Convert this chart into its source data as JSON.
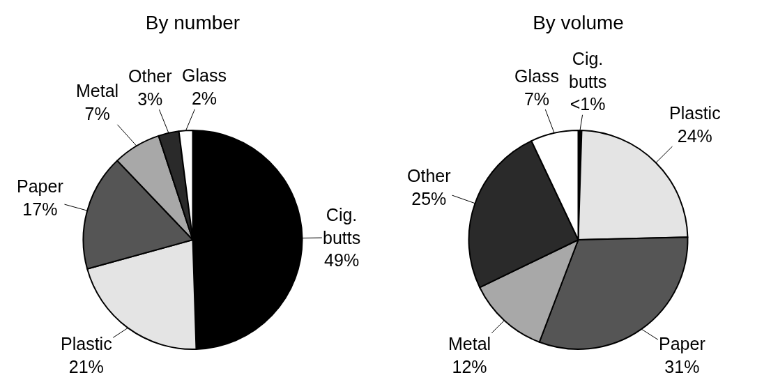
{
  "chart_data": [
    {
      "type": "pie",
      "title": "By number",
      "categories": [
        "Cig. butts",
        "Plastic",
        "Paper",
        "Metal",
        "Other",
        "Glass"
      ],
      "values": [
        49,
        21,
        17,
        7,
        3,
        2
      ],
      "value_labels": [
        "49%",
        "21%",
        "17%",
        "7%",
        "3%",
        "2%"
      ],
      "colors": [
        "#000000",
        "#e4e4e4",
        "#555555",
        "#a8a8a8",
        "#2a2a2a",
        "#ffffff"
      ]
    },
    {
      "type": "pie",
      "title": "By volume",
      "categories": [
        "Cig. butts",
        "Plastic",
        "Paper",
        "Metal",
        "Other",
        "Glass"
      ],
      "values": [
        0.5,
        24,
        31,
        12,
        25,
        7
      ],
      "value_labels": [
        "<1%",
        "24%",
        "31%",
        "12%",
        "25%",
        "7%"
      ],
      "colors": [
        "#000000",
        "#e4e4e4",
        "#555555",
        "#a8a8a8",
        "#2a2a2a",
        "#ffffff"
      ]
    }
  ]
}
